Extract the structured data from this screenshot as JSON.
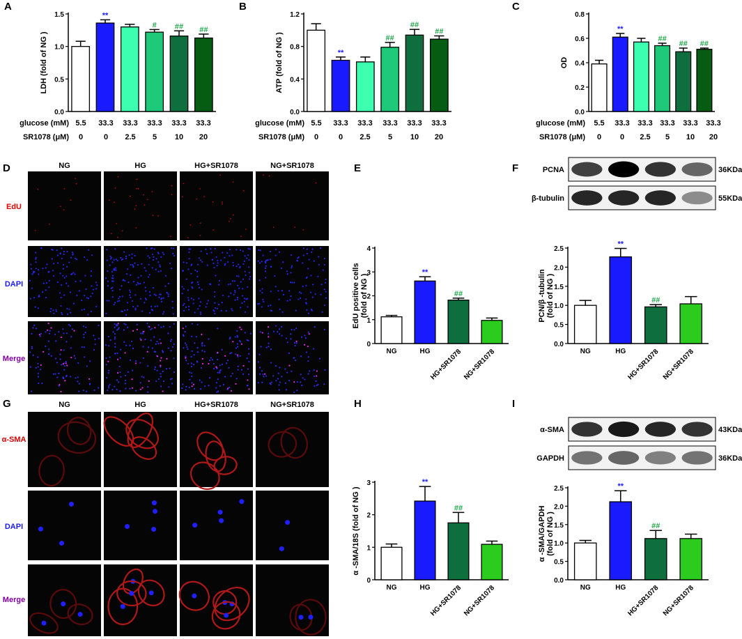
{
  "colors": {
    "ng": "#ffffff",
    "hg": "#1a1aff",
    "sr25": "#3dffb0",
    "sr5": "#1fc97a",
    "sr10": "#0e6e3e",
    "sr20": "#065c12",
    "ngsr": "#2ccc1e",
    "sig_hg": "#1a1aff",
    "sig_sr": "#1fa84a"
  },
  "panel_letters": [
    "A",
    "B",
    "C",
    "D",
    "E",
    "F",
    "G",
    "H",
    "I"
  ],
  "dose_table": {
    "row1_label": "glucose (mM)",
    "row2_label": "SR1078 (μM)",
    "glucose": [
      "5.5",
      "33.3",
      "33.3",
      "33.3",
      "33.3",
      "33.3"
    ],
    "sr1078": [
      "0",
      "0",
      "2.5",
      "5",
      "10",
      "20"
    ]
  },
  "image_grid_D": {
    "columns": [
      "NG",
      "HG",
      "HG+SR1078",
      "NG+SR1078"
    ],
    "rows": [
      "EdU",
      "DAPI",
      "Merge"
    ],
    "row_colors": [
      "#e00000",
      "#1a1aff",
      "#8000a0"
    ]
  },
  "image_grid_G": {
    "columns": [
      "NG",
      "HG",
      "HG+SR1078",
      "NG+SR1078"
    ],
    "rows": [
      "α-SMA",
      "DAPI",
      "Merge"
    ],
    "row_colors": [
      "#e00000",
      "#1a1aff",
      "#8000a0"
    ]
  },
  "blot_F": {
    "bands": [
      {
        "label": "PCNA",
        "kda": "36KDa",
        "intensity": [
          0.75,
          1.0,
          0.8,
          0.6
        ]
      },
      {
        "label": "β-tubulin",
        "kda": "55KDa",
        "intensity": [
          0.85,
          0.85,
          0.85,
          0.45
        ]
      }
    ]
  },
  "blot_I": {
    "bands": [
      {
        "label": "α-SMA",
        "kda": "43KDa",
        "intensity": [
          0.8,
          0.9,
          0.85,
          0.8
        ]
      },
      {
        "label": "GAPDH",
        "kda": "36KDa",
        "intensity": [
          0.55,
          0.6,
          0.5,
          0.55
        ]
      }
    ]
  },
  "chart_data": [
    {
      "panel": "A",
      "type": "bar",
      "ylabel": "LDH (fold of NG )",
      "ylim": [
        0,
        1.5
      ],
      "yticks": [
        "0.0",
        "0.5",
        "1.0",
        "1.5"
      ],
      "values": [
        1.0,
        1.36,
        1.3,
        1.22,
        1.16,
        1.13
      ],
      "errors": [
        0.08,
        0.05,
        0.04,
        0.04,
        0.08,
        0.06
      ],
      "sig": [
        "",
        "**",
        "",
        "#",
        "##",
        "##"
      ]
    },
    {
      "panel": "B",
      "type": "bar",
      "ylabel": "ATP (fold of NG )",
      "ylim": [
        0,
        1.2
      ],
      "yticks": [
        "0.0",
        "0.4",
        "0.8",
        "1.2"
      ],
      "values": [
        1.0,
        0.63,
        0.61,
        0.79,
        0.94,
        0.89
      ],
      "errors": [
        0.08,
        0.04,
        0.06,
        0.06,
        0.07,
        0.04
      ],
      "sig": [
        "",
        "**",
        "",
        "##",
        "##",
        "##"
      ]
    },
    {
      "panel": "C",
      "type": "bar",
      "ylabel": "OD",
      "ylim": [
        0,
        0.8
      ],
      "yticks": [
        "0.0",
        "0.2",
        "0.4",
        "0.6",
        "0.8"
      ],
      "values": [
        0.39,
        0.61,
        0.57,
        0.54,
        0.49,
        0.51
      ],
      "errors": [
        0.03,
        0.03,
        0.03,
        0.02,
        0.03,
        0.01
      ],
      "sig": [
        "",
        "**",
        "",
        "##",
        "##",
        "##"
      ]
    },
    {
      "panel": "E",
      "type": "bar",
      "ylabel": "EdU positive cells (fold of NG )",
      "ylim": [
        0,
        4
      ],
      "yticks": [
        "0",
        "1",
        "2",
        "3",
        "4"
      ],
      "categories": [
        "NG",
        "HG",
        "HG+SR1078",
        "NG+SR1078"
      ],
      "values": [
        1.12,
        2.62,
        1.82,
        0.97
      ],
      "errors": [
        0.06,
        0.18,
        0.08,
        0.1
      ],
      "sig": [
        "",
        "**",
        "##",
        ""
      ]
    },
    {
      "panel": "F",
      "type": "bar",
      "ylabel": "PCN/β-tubulin (fold of NG )",
      "ylim": [
        0,
        2.5
      ],
      "yticks": [
        "0.0",
        "0.5",
        "1.0",
        "1.5",
        "2.0",
        "2.5"
      ],
      "categories": [
        "NG",
        "HG",
        "HG+SR1078",
        "NG+SR1078"
      ],
      "values": [
        1.0,
        2.27,
        0.96,
        1.04
      ],
      "errors": [
        0.13,
        0.22,
        0.06,
        0.19
      ],
      "sig": [
        "",
        "**",
        "##",
        ""
      ]
    },
    {
      "panel": "H",
      "type": "bar",
      "ylabel": "α -SMA/18S (fold of NG )",
      "ylim": [
        0,
        3
      ],
      "yticks": [
        "0",
        "1",
        "2",
        "3"
      ],
      "categories": [
        "NG",
        "HG",
        "HG+SR1078",
        "NG+SR1078"
      ],
      "values": [
        1.0,
        2.42,
        1.75,
        1.09
      ],
      "errors": [
        0.1,
        0.45,
        0.32,
        0.1
      ],
      "sig": [
        "",
        "**",
        "##",
        ""
      ]
    },
    {
      "panel": "I",
      "type": "bar",
      "ylabel": "α -SMA/GAPDH (fold of NG )",
      "ylim": [
        0,
        2.5
      ],
      "yticks": [
        "0.0",
        "0.5",
        "1.0",
        "1.5",
        "2.0",
        "2.5"
      ],
      "categories": [
        "NG",
        "HG",
        "HG+SR1078",
        "NG+SR1078"
      ],
      "values": [
        1.0,
        2.12,
        1.12,
        1.12
      ],
      "errors": [
        0.07,
        0.3,
        0.22,
        0.12
      ],
      "sig": [
        "",
        "**",
        "##",
        ""
      ]
    }
  ]
}
